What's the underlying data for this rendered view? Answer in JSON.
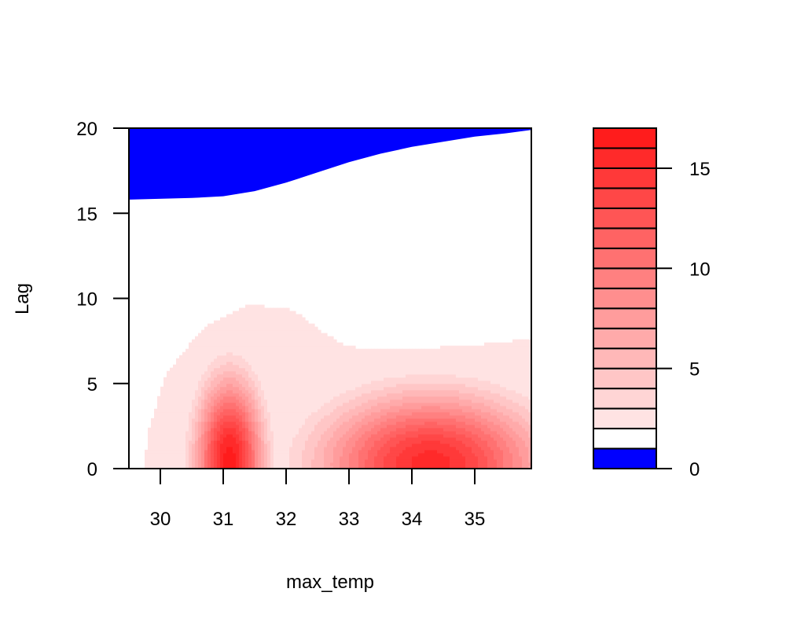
{
  "chart_data": {
    "type": "heatmap",
    "subtype": "filled-contour",
    "title": "",
    "xlabel": "max_temp",
    "ylabel": "Lag",
    "xlim": [
      29.5,
      35.9
    ],
    "ylim": [
      0,
      20
    ],
    "x_ticks": [
      30,
      31,
      32,
      33,
      34,
      35
    ],
    "y_ticks": [
      0,
      5,
      10,
      15,
      20
    ],
    "colorbar": {
      "ticks": [
        0,
        5,
        10,
        15
      ],
      "levels": [
        0,
        1,
        2,
        3,
        4,
        5,
        6,
        7,
        8,
        9,
        10,
        11,
        12,
        13,
        14,
        15,
        16,
        17
      ],
      "colors": [
        "#0000ff",
        "#ffffff",
        "#ffe3e3",
        "#ffd5d5",
        "#ffc6c6",
        "#ffb8b8",
        "#ffaaaa",
        "#ff9c9c",
        "#ff8e8e",
        "#ff8080",
        "#ff7171",
        "#ff6363",
        "#ff5555",
        "#ff4747",
        "#ff3939",
        "#ff2a2a",
        "#ff1c1c"
      ]
    },
    "regions": {
      "blue_lower_boundary": [
        [
          29.5,
          15.8
        ],
        [
          30.5,
          15.9
        ],
        [
          31.0,
          16.0
        ],
        [
          31.5,
          16.3
        ],
        [
          32.0,
          16.8
        ],
        [
          32.5,
          17.4
        ],
        [
          33.0,
          18.0
        ],
        [
          33.5,
          18.5
        ],
        [
          34.0,
          18.9
        ],
        [
          34.5,
          19.2
        ],
        [
          35.0,
          19.5
        ],
        [
          35.5,
          19.7
        ],
        [
          35.9,
          19.9
        ]
      ],
      "low_level_boundary": [
        [
          29.7,
          0
        ],
        [
          29.8,
          4
        ],
        [
          30.1,
          7.5
        ],
        [
          30.7,
          10.2
        ],
        [
          31.4,
          11.5
        ],
        [
          32.1,
          11.2
        ],
        [
          32.6,
          9.8
        ],
        [
          33.0,
          9.0
        ],
        [
          34.0,
          8.9
        ],
        [
          35.0,
          9.1
        ],
        [
          35.9,
          9.5
        ]
      ]
    },
    "peaks": [
      {
        "x": 31.1,
        "y": 0.5,
        "value": 16.5,
        "sx": 0.38,
        "sy": 3.4
      },
      {
        "x": 34.3,
        "y": 0.3,
        "value": 15.5,
        "sx": 1.25,
        "sy": 2.9
      }
    ],
    "background_value": 1.5
  }
}
